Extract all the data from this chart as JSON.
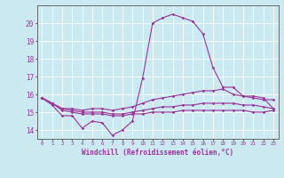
{
  "xlabel": "Windchill (Refroidissement éolien,°C)",
  "background_color": "#cbe9f0",
  "line_color": "#993399",
  "grid_color": "#ffffff",
  "x_values": [
    0,
    1,
    2,
    3,
    4,
    5,
    6,
    7,
    8,
    9,
    10,
    11,
    12,
    13,
    14,
    15,
    16,
    17,
    18,
    19,
    20,
    21,
    22,
    23
  ],
  "line1": [
    15.8,
    15.4,
    14.8,
    14.8,
    14.1,
    14.5,
    14.4,
    13.7,
    14.0,
    14.5,
    16.9,
    20.0,
    20.3,
    20.5,
    20.3,
    20.1,
    19.4,
    17.5,
    16.4,
    16.4,
    15.9,
    15.8,
    15.7,
    15.7
  ],
  "line2": [
    15.8,
    15.5,
    15.2,
    15.2,
    15.1,
    15.2,
    15.2,
    15.1,
    15.2,
    15.3,
    15.5,
    15.7,
    15.8,
    15.9,
    16.0,
    16.1,
    16.2,
    16.2,
    16.3,
    16.0,
    15.9,
    15.9,
    15.8,
    15.2
  ],
  "line3": [
    15.8,
    15.5,
    15.2,
    15.1,
    15.0,
    15.0,
    15.0,
    14.9,
    14.9,
    15.0,
    15.1,
    15.2,
    15.3,
    15.3,
    15.4,
    15.4,
    15.5,
    15.5,
    15.5,
    15.5,
    15.4,
    15.4,
    15.3,
    15.2
  ],
  "line4": [
    15.8,
    15.5,
    15.1,
    15.0,
    14.9,
    14.9,
    14.9,
    14.8,
    14.8,
    14.9,
    14.9,
    15.0,
    15.0,
    15.0,
    15.1,
    15.1,
    15.1,
    15.1,
    15.1,
    15.1,
    15.1,
    15.0,
    15.0,
    15.1
  ],
  "ylim": [
    13.5,
    21.0
  ],
  "yticks": [
    14,
    15,
    16,
    17,
    18,
    19,
    20
  ],
  "xlim": [
    -0.5,
    23.5
  ]
}
